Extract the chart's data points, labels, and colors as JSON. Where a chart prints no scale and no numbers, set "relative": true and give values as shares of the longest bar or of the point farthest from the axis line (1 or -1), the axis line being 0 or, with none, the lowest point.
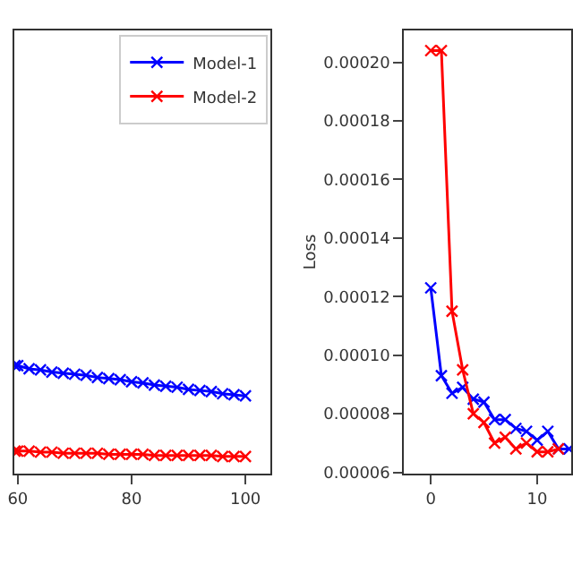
{
  "chart_data": [
    {
      "type": "line",
      "relative": true,
      "x": [
        59.5,
        60,
        62,
        64,
        66,
        68,
        70,
        72,
        74,
        76,
        78,
        80,
        82,
        84,
        86,
        88,
        90,
        92,
        94,
        96,
        98,
        100
      ],
      "xlim": [
        59.4,
        104.4
      ],
      "xticks": [
        60,
        80,
        100
      ],
      "tick_labels": "x",
      "marker": "cross",
      "line_style": "solid",
      "legend": "top right",
      "series": [
        {
          "name": "Model-1",
          "color": "#0000ff",
          "values": [
            1.0,
            1.0,
            0.97,
            0.96,
            0.94,
            0.93,
            0.92,
            0.91,
            0.89,
            0.88,
            0.87,
            0.85,
            0.84,
            0.82,
            0.81,
            0.8,
            0.78,
            0.77,
            0.76,
            0.74,
            0.73,
            0.72
          ]
        },
        {
          "name": "Model-2",
          "color": "#ff0000",
          "values": [
            0.21,
            0.21,
            0.21,
            0.2,
            0.2,
            0.19,
            0.19,
            0.19,
            0.19,
            0.18,
            0.18,
            0.18,
            0.18,
            0.17,
            0.17,
            0.17,
            0.17,
            0.17,
            0.17,
            0.16,
            0.16,
            0.16
          ]
        }
      ]
    },
    {
      "type": "line",
      "ylabel": "Loss",
      "x": [
        0,
        1,
        2,
        3,
        4,
        5,
        6,
        7,
        8,
        9,
        10,
        11,
        12,
        13
      ],
      "xlim": [
        -2.5,
        13.2
      ],
      "xticks": [
        0,
        10
      ],
      "ylim": [
        5.95e-05,
        0.000211
      ],
      "yticks": [
        {
          "value": 6e-05,
          "label": "0.00006"
        },
        {
          "value": 8e-05,
          "label": "0.00008"
        },
        {
          "value": 0.0001,
          "label": "0.00010"
        },
        {
          "value": 0.00012,
          "label": "0.00012"
        },
        {
          "value": 0.00014,
          "label": "0.00014"
        },
        {
          "value": 0.00016,
          "label": "0.00016"
        },
        {
          "value": 0.00018,
          "label": "0.00018"
        },
        {
          "value": 0.0002,
          "label": "0.00020"
        }
      ],
      "marker": "cross",
      "line_style": "solid",
      "legend": false,
      "series": [
        {
          "color": "#0000ff",
          "values": [
            0.000123,
            9.3e-05,
            8.7e-05,
            8.9e-05,
            8.5e-05,
            8.4e-05,
            7.8e-05,
            7.8e-05,
            7.5e-05,
            7.4e-05,
            7.1e-05,
            7.4e-05,
            6.8e-05,
            6.8e-05
          ]
        },
        {
          "color": "#ff0000",
          "values": [
            0.000204,
            0.000204,
            0.000115,
            9.5e-05,
            8e-05,
            7.7e-05,
            7e-05,
            7.2e-05,
            6.8e-05,
            7e-05,
            6.7e-05,
            6.7e-05,
            6.8e-05,
            null
          ]
        }
      ]
    }
  ]
}
